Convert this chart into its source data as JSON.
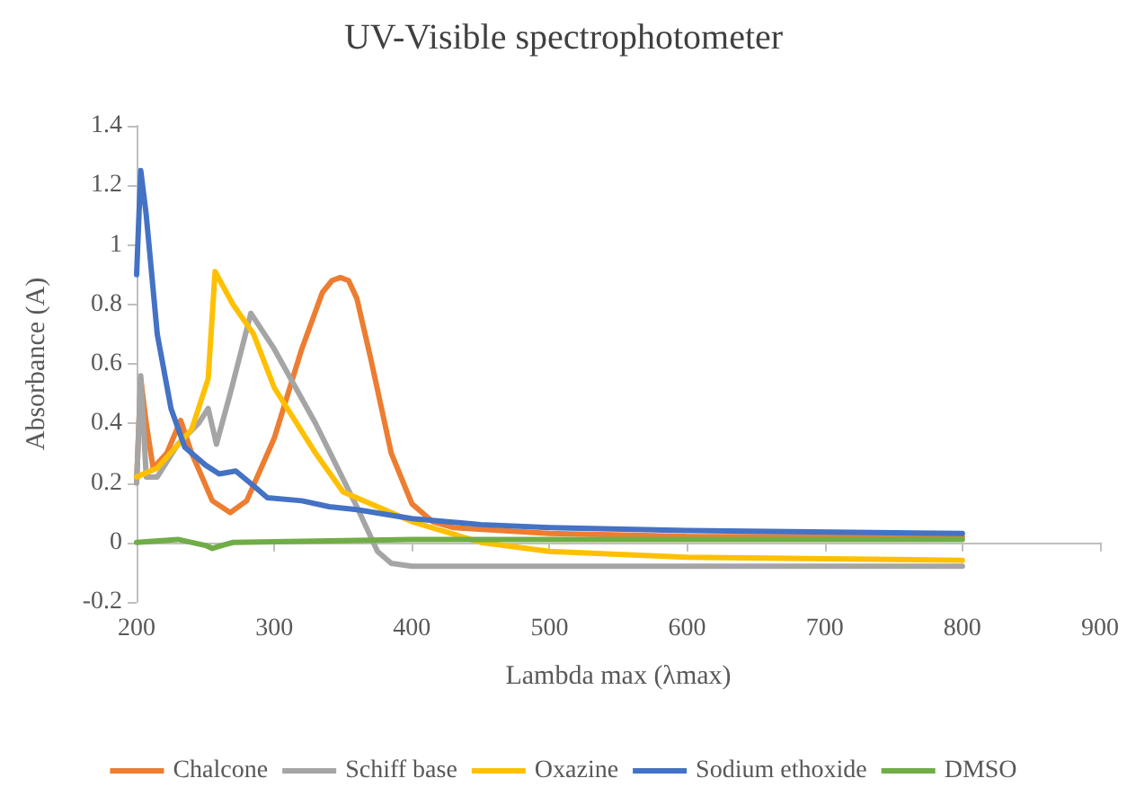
{
  "chart_data": {
    "type": "line",
    "title": "UV-Visible spectrophotometer",
    "xlabel": "Lambda max (λmax)",
    "ylabel": "Absorbance (A)",
    "xlim": [
      200,
      900
    ],
    "xticks": [
      200,
      300,
      400,
      500,
      600,
      700,
      800,
      900
    ],
    "ylim": [
      -0.2,
      1.4
    ],
    "yticks": [
      -0.2,
      0,
      0.2,
      0.4,
      0.6,
      0.8,
      1,
      1.2,
      1.4
    ],
    "legend": "bottom",
    "marker": "none",
    "line_style": "solid",
    "series": [
      {
        "name": "Chalcone",
        "color": "#ed7d31",
        "x": [
          200,
          203,
          207,
          212,
          222,
          232,
          240,
          255,
          268,
          280,
          300,
          320,
          335,
          342,
          348,
          354,
          360,
          370,
          385,
          400,
          415,
          430,
          500,
          600,
          800
        ],
        "values": [
          0.2,
          0.55,
          0.4,
          0.25,
          0.3,
          0.41,
          0.3,
          0.14,
          0.1,
          0.14,
          0.35,
          0.65,
          0.84,
          0.88,
          0.89,
          0.88,
          0.82,
          0.62,
          0.3,
          0.13,
          0.07,
          0.05,
          0.03,
          0.02,
          0.02
        ]
      },
      {
        "name": "Schiff base",
        "color": "#a5a5a5",
        "x": [
          200,
          203,
          207,
          215,
          230,
          245,
          252,
          258,
          268,
          283,
          300,
          330,
          360,
          375,
          385,
          400,
          500,
          800
        ],
        "values": [
          0.2,
          0.56,
          0.22,
          0.22,
          0.33,
          0.4,
          0.45,
          0.33,
          0.5,
          0.77,
          0.65,
          0.4,
          0.12,
          -0.03,
          -0.07,
          -0.08,
          -0.08,
          -0.08
        ]
      },
      {
        "name": "Oxazine",
        "color": "#ffc000",
        "x": [
          200,
          215,
          240,
          252,
          257,
          270,
          285,
          300,
          330,
          350,
          400,
          450,
          500,
          600,
          800
        ],
        "values": [
          0.22,
          0.25,
          0.38,
          0.55,
          0.91,
          0.8,
          0.7,
          0.52,
          0.3,
          0.17,
          0.07,
          0.0,
          -0.03,
          -0.05,
          -0.06
        ]
      },
      {
        "name": "Sodium ethoxide",
        "color": "#4472c4",
        "x": [
          200,
          203,
          207,
          215,
          225,
          235,
          250,
          260,
          272,
          285,
          295,
          320,
          340,
          360,
          400,
          450,
          500,
          600,
          800
        ],
        "values": [
          0.9,
          1.25,
          1.1,
          0.7,
          0.45,
          0.32,
          0.26,
          0.23,
          0.24,
          0.19,
          0.15,
          0.14,
          0.12,
          0.11,
          0.08,
          0.06,
          0.05,
          0.04,
          0.03
        ]
      },
      {
        "name": "DMSO",
        "color": "#70ad47",
        "x": [
          200,
          230,
          250,
          255,
          262,
          270,
          400,
          800
        ],
        "values": [
          0.0,
          0.01,
          -0.01,
          -0.02,
          -0.01,
          0.0,
          0.01,
          0.01
        ]
      }
    ]
  }
}
